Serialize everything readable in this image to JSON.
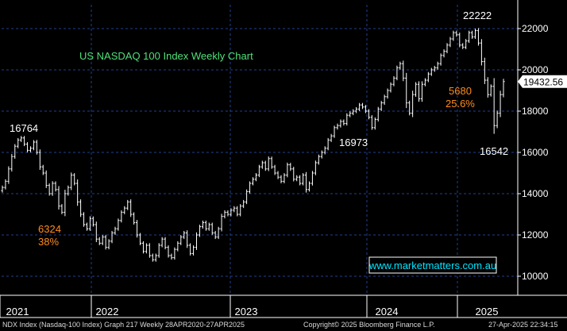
{
  "chart_data": {
    "type": "bar",
    "style": "ohlc-weekly",
    "title": "US NASDAQ 100 Index Weekly Chart",
    "xlabel": "",
    "ylabel": "",
    "x_tick_labels": [
      "2021",
      "2022",
      "2023",
      "2024",
      "2025"
    ],
    "y_tick_labels": [
      "10000",
      "12000",
      "14000",
      "16000",
      "18000",
      "20000",
      "22000"
    ],
    "ylim": [
      9500,
      23400
    ],
    "grid": true,
    "last_price": "19432.56",
    "annotations": [
      {
        "text": "16764",
        "color": "#ffffff"
      },
      {
        "text": "6324",
        "color": "#ff8c1a"
      },
      {
        "text": "38%",
        "color": "#ff8c1a"
      },
      {
        "text": "16973",
        "color": "#ffffff"
      },
      {
        "text": "22222",
        "color": "#ffffff"
      },
      {
        "text": "5680",
        "color": "#ff8c1a"
      },
      {
        "text": "25.6%",
        "color": "#ff8c1a"
      },
      {
        "text": "16542",
        "color": "#ffffff"
      }
    ],
    "watermark": "www.marketmatters.com.au",
    "series": [
      {
        "values": [
          14300,
          14600,
          15200,
          15800,
          16300,
          16600,
          16700,
          16400,
          16100,
          16200,
          16500,
          16000,
          15300,
          15000,
          14400,
          14000,
          14500,
          14200,
          13400,
          13100,
          14000,
          14300,
          14900,
          14500,
          13600,
          13000,
          12500,
          12300,
          12800,
          12500,
          11800,
          11600,
          11900,
          11400,
          11700,
          12100,
          12300,
          12700,
          13100,
          13300,
          13600,
          13000,
          12600,
          12000,
          11600,
          11200,
          11500,
          11000,
          10800,
          11000,
          11500,
          11800,
          11400,
          11000,
          10900,
          11300,
          11600,
          11900,
          12100,
          11500,
          11100,
          11400,
          12000,
          12400,
          12600,
          12300,
          12500,
          12100,
          11900,
          12300,
          12900,
          13100,
          13000,
          13200,
          13300,
          13000,
          13400,
          13600,
          14100,
          14500,
          14700,
          14900,
          15300,
          15500,
          15200,
          15700,
          15300,
          15000,
          14800,
          14600,
          14900,
          15400,
          15200,
          14700,
          14800,
          14500,
          14900,
          14200,
          14500,
          15000,
          15500,
          15800,
          16000,
          16200,
          16600,
          16800,
          17200,
          17300,
          17500,
          17400,
          17800,
          17900,
          18000,
          18100,
          18300,
          18200,
          18000,
          17700,
          17200,
          17600,
          18100,
          18400,
          18700,
          19000,
          19300,
          19600,
          20100,
          20300,
          19600,
          18400,
          17900,
          18800,
          19300,
          18600,
          19300,
          19500,
          19800,
          20000,
          20100,
          20300,
          20700,
          20900,
          21200,
          21500,
          21800,
          21700,
          21200,
          21100,
          21400,
          21800,
          21600,
          21900,
          21300,
          20400,
          19500,
          18800,
          19200,
          17300,
          17900,
          18800,
          19432.56
        ]
      }
    ]
  },
  "footer": {
    "left": "NDX Index (Nasdaq-100 Index) Graph 217  Weekly 28APR2020-27APR2025",
    "center": "Copyright© 2025 Bloomberg Finance L.P.",
    "right": "27-Apr-2025 22:34:15"
  },
  "colors": {
    "background": "#000000",
    "grid": "#1f3f8f",
    "bars": "#ffffff",
    "title": "#4ee07a",
    "accent": "#ff8c1a",
    "price_tag_bg": "#ffffff",
    "watermark_border": "#ffffff",
    "watermark_text": "#00e5ff"
  }
}
